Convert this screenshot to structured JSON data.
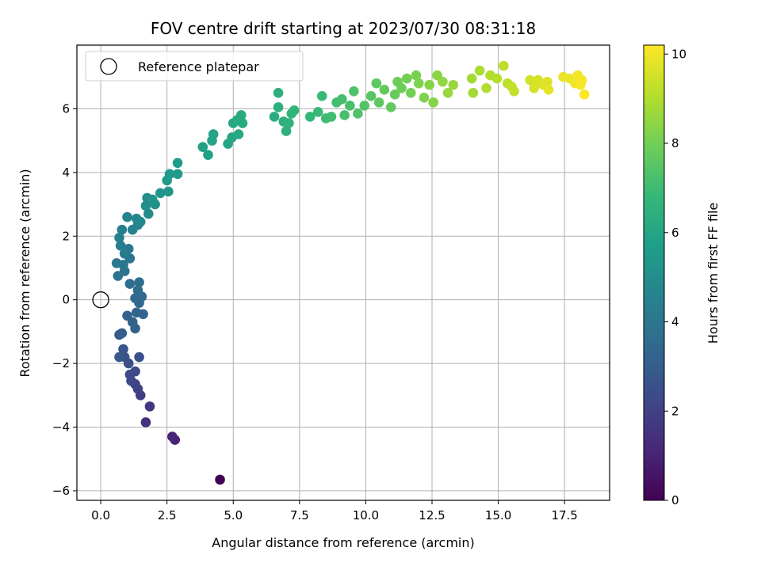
{
  "chart_data": {
    "type": "scatter",
    "title": "FOV centre drift starting at 2023/07/30 08:31:18",
    "xlabel": "Angular distance from reference (arcmin)",
    "ylabel": "Rotation from reference (arcmin)",
    "colorbar_label": "Hours from first FF file",
    "xlim": [
      -0.9,
      19.2
    ],
    "ylim": [
      -6.3,
      8.0
    ],
    "clim": [
      0,
      10.2
    ],
    "xticks": [
      0.0,
      2.5,
      5.0,
      7.5,
      10.0,
      12.5,
      15.0,
      17.5
    ],
    "xtick_labels": [
      "0.0",
      "2.5",
      "5.0",
      "7.5",
      "10.0",
      "12.5",
      "15.0",
      "17.5"
    ],
    "yticks": [
      -6,
      -4,
      -2,
      0,
      2,
      4,
      6
    ],
    "ytick_labels": [
      "−6",
      "−4",
      "−2",
      "0",
      "2",
      "4",
      "6"
    ],
    "cticks": [
      0,
      2,
      4,
      6,
      8,
      10
    ],
    "ctick_labels": [
      "0",
      "2",
      "4",
      "6",
      "8",
      "10"
    ],
    "colormap": "viridis",
    "grid": true,
    "legend_placement": "upper-left",
    "legend": [
      {
        "label": "Reference platepar",
        "marker": "open-circle"
      }
    ],
    "reference_point": {
      "x": 0.0,
      "y": 0.0
    },
    "points": [
      [
        4.5,
        -5.65,
        0.0
      ],
      [
        2.8,
        -4.4,
        1.0
      ],
      [
        2.7,
        -4.3,
        1.1
      ],
      [
        1.7,
        -3.85,
        1.4
      ],
      [
        1.85,
        -3.35,
        1.6
      ],
      [
        1.5,
        -3.0,
        1.9
      ],
      [
        1.4,
        -2.8,
        2.0
      ],
      [
        1.3,
        -2.65,
        2.1
      ],
      [
        1.15,
        -2.55,
        2.2
      ],
      [
        1.3,
        -2.25,
        2.3
      ],
      [
        1.1,
        -2.35,
        2.3
      ],
      [
        1.45,
        -1.8,
        2.5
      ],
      [
        1.05,
        -2.0,
        2.5
      ],
      [
        0.9,
        -1.8,
        2.6
      ],
      [
        0.85,
        -1.55,
        2.7
      ],
      [
        0.7,
        -1.8,
        2.8
      ],
      [
        0.7,
        -1.1,
        2.9
      ],
      [
        0.8,
        -1.05,
        3.0
      ],
      [
        1.3,
        -0.9,
        3.1
      ],
      [
        1.2,
        -0.7,
        3.2
      ],
      [
        1.0,
        -0.5,
        3.2
      ],
      [
        1.6,
        -0.45,
        3.3
      ],
      [
        1.35,
        -0.4,
        3.3
      ],
      [
        1.45,
        -0.1,
        3.4
      ],
      [
        1.55,
        0.1,
        3.5
      ],
      [
        1.3,
        0.05,
        3.5
      ],
      [
        1.4,
        0.3,
        3.6
      ],
      [
        1.45,
        0.55,
        3.7
      ],
      [
        1.1,
        0.5,
        3.7
      ],
      [
        0.9,
        0.9,
        3.8
      ],
      [
        0.65,
        0.75,
        3.9
      ],
      [
        0.85,
        1.1,
        4.0
      ],
      [
        1.1,
        1.3,
        4.0
      ],
      [
        0.6,
        1.15,
        4.1
      ],
      [
        0.9,
        1.45,
        4.2
      ],
      [
        1.05,
        1.6,
        4.2
      ],
      [
        0.75,
        1.7,
        4.3
      ],
      [
        0.7,
        1.95,
        4.4
      ],
      [
        0.8,
        2.2,
        4.4
      ],
      [
        1.2,
        2.2,
        4.5
      ],
      [
        1.0,
        2.6,
        4.6
      ],
      [
        1.4,
        2.35,
        4.6
      ],
      [
        1.35,
        2.55,
        4.7
      ],
      [
        1.5,
        2.45,
        4.8
      ],
      [
        1.8,
        2.7,
        4.9
      ],
      [
        1.7,
        2.95,
        5.0
      ],
      [
        1.75,
        3.2,
        5.0
      ],
      [
        2.05,
        3.0,
        5.1
      ],
      [
        1.95,
        3.15,
        5.2
      ],
      [
        2.25,
        3.35,
        5.3
      ],
      [
        2.55,
        3.4,
        5.4
      ],
      [
        2.5,
        3.75,
        5.5
      ],
      [
        2.6,
        3.95,
        5.5
      ],
      [
        2.9,
        3.95,
        5.6
      ],
      [
        2.9,
        4.3,
        5.6
      ],
      [
        3.85,
        4.8,
        5.8
      ],
      [
        4.05,
        4.55,
        5.8
      ],
      [
        4.2,
        5.0,
        5.9
      ],
      [
        4.25,
        5.2,
        5.9
      ],
      [
        4.8,
        4.9,
        6.0
      ],
      [
        4.95,
        5.1,
        6.0
      ],
      [
        5.0,
        5.55,
        6.1
      ],
      [
        5.2,
        5.2,
        6.1
      ],
      [
        5.15,
        5.65,
        6.2
      ],
      [
        5.35,
        5.55,
        6.2
      ],
      [
        5.3,
        5.8,
        6.2
      ],
      [
        6.55,
        5.75,
        6.3
      ],
      [
        6.7,
        6.5,
        6.4
      ],
      [
        6.7,
        6.05,
        6.4
      ],
      [
        6.9,
        5.6,
        6.5
      ],
      [
        7.0,
        5.3,
        6.5
      ],
      [
        7.1,
        5.55,
        6.6
      ],
      [
        7.2,
        5.85,
        6.6
      ],
      [
        7.3,
        5.95,
        6.7
      ],
      [
        7.9,
        5.75,
        6.8
      ],
      [
        8.2,
        5.9,
        6.9
      ],
      [
        8.35,
        6.4,
        6.9
      ],
      [
        8.5,
        5.7,
        7.0
      ],
      [
        8.7,
        5.75,
        7.0
      ],
      [
        8.9,
        6.2,
        7.1
      ],
      [
        9.1,
        6.3,
        7.1
      ],
      [
        9.2,
        5.8,
        7.2
      ],
      [
        9.4,
        6.1,
        7.2
      ],
      [
        9.55,
        6.55,
        7.3
      ],
      [
        9.7,
        5.85,
        7.3
      ],
      [
        9.95,
        6.1,
        7.4
      ],
      [
        10.2,
        6.4,
        7.5
      ],
      [
        10.4,
        6.8,
        7.6
      ],
      [
        10.5,
        6.2,
        7.6
      ],
      [
        10.7,
        6.6,
        7.7
      ],
      [
        10.95,
        6.05,
        7.7
      ],
      [
        11.1,
        6.45,
        7.8
      ],
      [
        11.2,
        6.85,
        7.9
      ],
      [
        11.35,
        6.65,
        7.9
      ],
      [
        11.55,
        6.95,
        8.0
      ],
      [
        11.7,
        6.5,
        8.0
      ],
      [
        11.9,
        7.05,
        8.1
      ],
      [
        12.0,
        6.8,
        8.2
      ],
      [
        12.2,
        6.35,
        8.2
      ],
      [
        12.4,
        6.75,
        8.3
      ],
      [
        12.55,
        6.2,
        8.3
      ],
      [
        12.7,
        7.05,
        8.4
      ],
      [
        12.9,
        6.85,
        8.5
      ],
      [
        13.1,
        6.5,
        8.6
      ],
      [
        13.3,
        6.75,
        8.6
      ],
      [
        14.0,
        6.95,
        8.8
      ],
      [
        14.05,
        6.5,
        8.8
      ],
      [
        14.3,
        7.2,
        8.9
      ],
      [
        14.55,
        6.65,
        9.0
      ],
      [
        14.7,
        7.05,
        9.0
      ],
      [
        14.95,
        6.95,
        9.1
      ],
      [
        15.2,
        7.35,
        9.2
      ],
      [
        15.35,
        6.8,
        9.2
      ],
      [
        15.5,
        6.7,
        9.3
      ],
      [
        15.6,
        6.55,
        9.3
      ],
      [
        16.2,
        6.9,
        9.5
      ],
      [
        16.35,
        6.65,
        9.6
      ],
      [
        16.5,
        6.9,
        9.6
      ],
      [
        16.7,
        6.75,
        9.7
      ],
      [
        16.85,
        6.85,
        9.7
      ],
      [
        16.9,
        6.6,
        9.8
      ],
      [
        17.45,
        7.0,
        9.9
      ],
      [
        17.7,
        6.95,
        9.9
      ],
      [
        17.9,
        6.8,
        10.0
      ],
      [
        18.0,
        7.05,
        10.0
      ],
      [
        18.1,
        6.75,
        10.1
      ],
      [
        18.15,
        6.9,
        10.1
      ],
      [
        18.25,
        6.45,
        10.2
      ]
    ]
  }
}
